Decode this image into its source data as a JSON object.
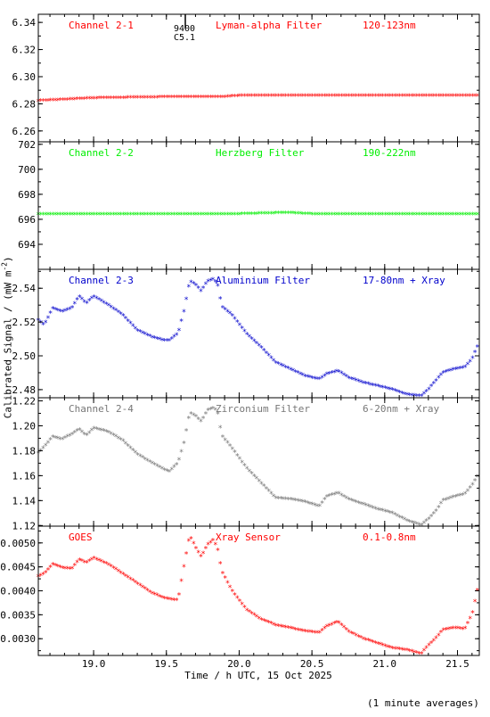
{
  "figure": {
    "xlabel": "Time / h UTC, 15 Oct 2025",
    "ylabel": "Calibrated Signal / (mW m",
    "ylabel_sup": "-2",
    "ylabel_close": ")",
    "footnote": "(1 minute averages)",
    "event_label_top": "9400",
    "event_label_bottom": "C5.1"
  },
  "chart_data": [
    {
      "type": "scatter",
      "series": [
        {
          "name": "Channel 2-1",
          "color": "#ff0000",
          "x": [
            18.62,
            19.0,
            19.5,
            19.9,
            20.0,
            20.5,
            21.0,
            21.65
          ],
          "y": [
            6.282,
            6.284,
            6.2848,
            6.285,
            6.2857,
            6.2857,
            6.2857,
            6.286
          ]
        }
      ],
      "annotations": [
        "Lyman-alpha Filter",
        "120-123nm"
      ],
      "xlim": [
        18.62,
        21.65
      ],
      "ylim": [
        6.252,
        6.346
      ],
      "yticks": [
        6.26,
        6.28,
        6.3,
        6.32,
        6.34
      ],
      "ytick_labels": [
        "6.26",
        "6.28",
        "6.30",
        "6.32",
        "6.34"
      ],
      "xticks": [
        19.0,
        19.5,
        20.0,
        20.5,
        21.0,
        21.5
      ],
      "xtick_labels": [],
      "grid": false
    },
    {
      "type": "scatter",
      "series": [
        {
          "name": "Channel 2-2",
          "color": "#00ee00",
          "x": [
            18.62,
            19.0,
            19.5,
            20.0,
            20.33,
            20.5,
            21.0,
            21.65
          ],
          "y": [
            696.4,
            696.4,
            696.4,
            696.4,
            696.5,
            696.4,
            696.4,
            696.4
          ]
        }
      ],
      "annotations": [
        "Herzberg Filter",
        "190-222nm"
      ],
      "xlim": [
        18.62,
        21.65
      ],
      "ylim": [
        692.0,
        702.2
      ],
      "yticks": [
        694,
        696,
        698,
        700,
        702
      ],
      "ytick_labels": [
        "694",
        "696",
        "698",
        "700",
        "702"
      ],
      "xticks": [
        19.0,
        19.5,
        20.0,
        20.5,
        21.0,
        21.5
      ],
      "xtick_labels": [],
      "grid": false
    },
    {
      "type": "scatter",
      "series": [
        {
          "name": "Channel 2-3",
          "color": "#0000cc",
          "x": [
            18.62,
            18.66,
            18.72,
            18.78,
            18.85,
            18.9,
            18.95,
            19.0,
            19.1,
            19.2,
            19.3,
            19.4,
            19.48,
            19.52,
            19.58,
            19.62,
            19.66,
            19.7,
            19.74,
            19.78,
            19.82,
            19.85,
            19.88,
            19.95,
            20.05,
            20.15,
            20.25,
            20.35,
            20.45,
            20.55,
            20.6,
            20.68,
            20.75,
            20.85,
            20.95,
            21.05,
            21.15,
            21.25,
            21.3,
            21.35,
            21.4,
            21.48,
            21.55,
            21.6,
            21.65
          ],
          "y": [
            2.521,
            2.518,
            2.528,
            2.526,
            2.528,
            2.535,
            2.531,
            2.535,
            2.53,
            2.524,
            2.515,
            2.511,
            2.509,
            2.509,
            2.513,
            2.526,
            2.544,
            2.542,
            2.538,
            2.544,
            2.545,
            2.543,
            2.529,
            2.524,
            2.513,
            2.505,
            2.496,
            2.492,
            2.488,
            2.486,
            2.489,
            2.491,
            2.487,
            2.484,
            2.482,
            2.48,
            2.477,
            2.476,
            2.48,
            2.485,
            2.49,
            2.492,
            2.493,
            2.498,
            2.508
          ]
        }
      ],
      "annotations": [
        "Aluminium Filter",
        "17-80nm + Xray"
      ],
      "xlim": [
        18.62,
        21.65
      ],
      "ylim": [
        2.4752,
        2.5512
      ],
      "yticks": [
        2.48,
        2.5,
        2.52,
        2.54
      ],
      "ytick_labels": [
        "2.48",
        "2.50",
        "2.52",
        "2.54"
      ],
      "xticks": [
        19.0,
        19.5,
        20.0,
        20.5,
        21.0,
        21.5
      ],
      "xtick_labels": [],
      "grid": false
    },
    {
      "type": "scatter",
      "series": [
        {
          "name": "Channel 2-4",
          "color": "#777777",
          "x": [
            18.62,
            18.66,
            18.72,
            18.78,
            18.85,
            18.9,
            18.95,
            19.0,
            19.1,
            19.2,
            19.3,
            19.4,
            19.48,
            19.52,
            19.58,
            19.62,
            19.66,
            19.7,
            19.74,
            19.78,
            19.82,
            19.85,
            19.88,
            19.95,
            20.05,
            20.15,
            20.25,
            20.35,
            20.45,
            20.55,
            20.6,
            20.68,
            20.75,
            20.85,
            20.95,
            21.05,
            21.15,
            21.25,
            21.3,
            21.35,
            21.4,
            21.48,
            21.55,
            21.6,
            21.65
          ],
          "y": [
            1.178,
            1.183,
            1.191,
            1.189,
            1.193,
            1.197,
            1.192,
            1.198,
            1.195,
            1.188,
            1.177,
            1.17,
            1.165,
            1.163,
            1.17,
            1.186,
            1.21,
            1.208,
            1.203,
            1.212,
            1.214,
            1.212,
            1.192,
            1.182,
            1.166,
            1.154,
            1.142,
            1.141,
            1.139,
            1.135,
            1.143,
            1.146,
            1.141,
            1.137,
            1.133,
            1.13,
            1.124,
            1.12,
            1.125,
            1.131,
            1.14,
            1.143,
            1.145,
            1.152,
            1.162
          ]
        }
      ],
      "annotations": [
        "Zirconium Filter",
        "6-20nm + Xray"
      ],
      "xlim": [
        18.62,
        21.65
      ],
      "ylim": [
        1.1195,
        1.2225
      ],
      "yticks": [
        1.12,
        1.14,
        1.16,
        1.18,
        1.2,
        1.22
      ],
      "ytick_labels": [
        "1.12",
        "1.14",
        "1.16",
        "1.18",
        "1.20",
        "1.22"
      ],
      "xticks": [
        19.0,
        19.5,
        20.0,
        20.5,
        21.0,
        21.5
      ],
      "xtick_labels": [],
      "grid": false
    },
    {
      "type": "scatter",
      "series": [
        {
          "name": "GOES",
          "color": "#ff0000",
          "x": [
            18.62,
            18.66,
            18.72,
            18.78,
            18.85,
            18.9,
            18.95,
            19.0,
            19.1,
            19.2,
            19.3,
            19.4,
            19.48,
            19.52,
            19.58,
            19.62,
            19.66,
            19.7,
            19.74,
            19.78,
            19.82,
            19.85,
            19.88,
            19.95,
            20.05,
            20.15,
            20.25,
            20.35,
            20.45,
            20.55,
            20.6,
            20.68,
            20.75,
            20.85,
            20.95,
            21.05,
            21.15,
            21.25,
            21.3,
            21.35,
            21.4,
            21.48,
            21.55,
            21.6,
            21.65
          ],
          "y": [
            0.0043,
            0.00435,
            0.00455,
            0.00448,
            0.00445,
            0.00465,
            0.00458,
            0.00468,
            0.00455,
            0.00435,
            0.00415,
            0.00395,
            0.00385,
            0.00382,
            0.0038,
            0.0045,
            0.00515,
            0.0049,
            0.0047,
            0.00495,
            0.00505,
            0.0049,
            0.0044,
            0.004,
            0.0036,
            0.0034,
            0.00328,
            0.00322,
            0.00315,
            0.00312,
            0.00325,
            0.00335,
            0.00315,
            0.003,
            0.0029,
            0.0028,
            0.00276,
            0.00268,
            0.00285,
            0.003,
            0.00318,
            0.00322,
            0.0032,
            0.0035,
            0.0042
          ]
        }
      ],
      "annotations": [
        "Xray Sensor",
        "0.1-0.8nm"
      ],
      "xlim": [
        18.62,
        21.65
      ],
      "ylim": [
        0.00265,
        0.00535
      ],
      "yticks": [
        0.003,
        0.0035,
        0.004,
        0.0045,
        0.005
      ],
      "ytick_labels": [
        "0.0030",
        "0.0035",
        "0.0040",
        "0.0045",
        "0.0050"
      ],
      "xticks": [
        19.0,
        19.5,
        20.0,
        20.5,
        21.0,
        21.5
      ],
      "xtick_labels": [
        "19.0",
        "19.5",
        "20.0",
        "20.5",
        "21.0",
        "21.5"
      ],
      "grid": false
    }
  ],
  "event": {
    "x": 19.63
  }
}
